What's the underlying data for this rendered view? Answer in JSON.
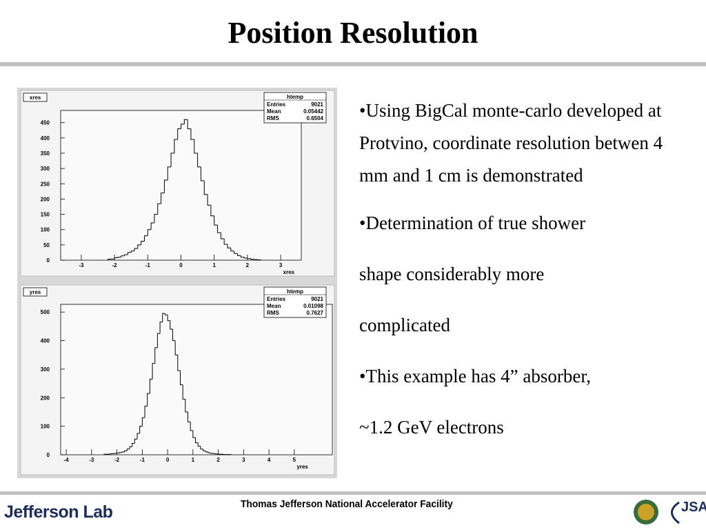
{
  "title": "Position Resolution",
  "bullets": [
    "•Using BigCal monte-carlo developed at Protvino, coordinate resolution betwen 4 mm and 1 cm is demonstrated",
    "•Determination of true shower",
    "shape considerably more",
    "complicated",
    "•This example has 4” absorber,",
    "~1.2 GeV electrons"
  ],
  "footer": {
    "center": "Thomas Jefferson National Accelerator Facility",
    "logo": "Jefferson Lab",
    "jsa": "JSA"
  },
  "chart_data": [
    {
      "type": "histogram",
      "name": "xres",
      "xlabel": "xres",
      "color": "#000000",
      "stats": {
        "title": "htemp",
        "rows": [
          [
            "Entries",
            "9021"
          ],
          [
            "Mean",
            "0.05442"
          ],
          [
            "RMS",
            "0.6504"
          ]
        ]
      },
      "bins": [
        -2.2,
        -2.1,
        -2.0,
        -1.9,
        -1.8,
        -1.7,
        -1.6,
        -1.5,
        -1.4,
        -1.3,
        -1.2,
        -1.1,
        -1.0,
        -0.9,
        -0.8,
        -0.7,
        -0.6,
        -0.5,
        -0.4,
        -0.3,
        -0.2,
        -0.1,
        0.0,
        0.1,
        0.2,
        0.3,
        0.4,
        0.5,
        0.6,
        0.7,
        0.8,
        0.9,
        1.0,
        1.1,
        1.2,
        1.3,
        1.4,
        1.5,
        1.6,
        1.7,
        1.8,
        1.9,
        2.0,
        2.1,
        2.2,
        2.3,
        2.4
      ],
      "values": [
        3,
        4,
        8,
        10,
        14,
        18,
        25,
        30,
        38,
        50,
        62,
        80,
        100,
        122,
        150,
        185,
        220,
        262,
        305,
        350,
        395,
        430,
        445,
        460,
        430,
        395,
        350,
        305,
        260,
        215,
        180,
        145,
        115,
        90,
        70,
        52,
        40,
        30,
        22,
        15,
        10,
        7,
        5,
        3,
        2,
        1
      ],
      "xlim": [
        -3.62,
        3.62
      ],
      "ylim": [
        0,
        490
      ],
      "xticks": [
        -3,
        -2,
        -1,
        0,
        1,
        2,
        3
      ],
      "yticks": [
        0,
        50,
        100,
        150,
        200,
        250,
        300,
        350,
        400,
        450
      ]
    },
    {
      "type": "histogram",
      "name": "yres",
      "xlabel": "yres",
      "color": "#000000",
      "stats": {
        "title": "htemp",
        "rows": [
          [
            "Entries",
            "9021"
          ],
          [
            "Mean",
            "0.01098"
          ],
          [
            "RMS",
            "0.7627"
          ]
        ]
      },
      "bins": [
        -2.5,
        -2.4,
        -2.3,
        -2.2,
        -2.1,
        -2.0,
        -1.9,
        -1.8,
        -1.7,
        -1.6,
        -1.5,
        -1.4,
        -1.3,
        -1.2,
        -1.1,
        -1.0,
        -0.9,
        -0.8,
        -0.7,
        -0.6,
        -0.5,
        -0.4,
        -0.3,
        -0.2,
        -0.1,
        0.0,
        0.1,
        0.2,
        0.3,
        0.4,
        0.5,
        0.6,
        0.7,
        0.8,
        0.9,
        1.0,
        1.1,
        1.2,
        1.3,
        1.4,
        1.5,
        1.6,
        1.7,
        1.8,
        1.9,
        2.0,
        2.1,
        2.2,
        2.3,
        2.4,
        2.5
      ],
      "values": [
        2,
        2,
        3,
        4,
        5,
        6,
        8,
        10,
        14,
        20,
        28,
        40,
        55,
        75,
        100,
        130,
        170,
        215,
        265,
        320,
        375,
        425,
        465,
        495,
        490,
        470,
        440,
        400,
        350,
        295,
        245,
        195,
        150,
        115,
        85,
        60,
        42,
        30,
        20,
        14,
        10,
        7,
        5,
        4,
        3,
        2,
        2,
        1,
        1,
        1
      ],
      "xlim": [
        -4.22,
        6.5
      ],
      "ylim": [
        0,
        527
      ],
      "xticks": [
        -4,
        -3,
        -2,
        -1,
        0,
        1,
        2,
        3,
        4,
        5
      ],
      "yticks": [
        0,
        100,
        200,
        300,
        400,
        500
      ]
    }
  ]
}
